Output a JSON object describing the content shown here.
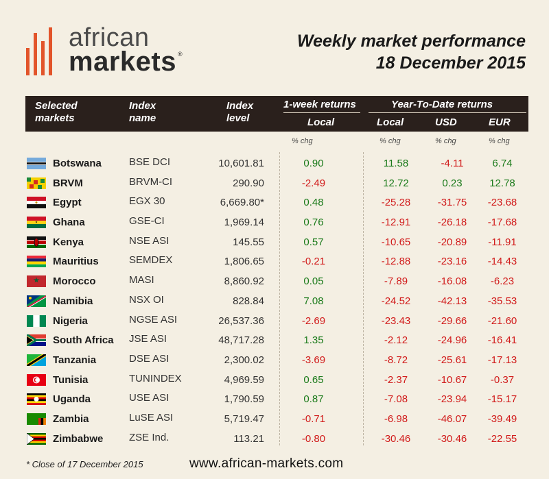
{
  "logo": {
    "line1": "african",
    "line2": "markets",
    "reg": "®"
  },
  "title": {
    "line1": "Weekly market performance",
    "line2": "18 December 2015"
  },
  "header": {
    "col_market": "Selected markets",
    "col_market_1": "Selected",
    "col_market_2": "markets",
    "col_index_1": "Index",
    "col_index_2": "name",
    "col_level_1": "Index",
    "col_level_2": "level",
    "week_group": "1-week returns",
    "ytd_group": "Year-To-Date returns",
    "week_local": "Local",
    "ytd_local": "Local",
    "ytd_usd": "USD",
    "ytd_eur": "EUR"
  },
  "subheader": {
    "wk": "% chg",
    "ytdl": "% chg",
    "ytdu": "% chg",
    "ytde": "% chg"
  },
  "rows": [
    {
      "country": "Botswana",
      "index": "BSE DCI",
      "level": "10,601.81",
      "wk": "0.90",
      "ytdl": "11.58",
      "ytdu": "-4.11",
      "ytde": "6.74"
    },
    {
      "country": "BRVM",
      "index": "BRVM-CI",
      "level": "290.90",
      "wk": "-2.49",
      "ytdl": "12.72",
      "ytdu": "0.23",
      "ytde": "12.78"
    },
    {
      "country": "Egypt",
      "index": "EGX 30",
      "level": "6,669.80*",
      "wk": "0.48",
      "ytdl": "-25.28",
      "ytdu": "-31.75",
      "ytde": "-23.68"
    },
    {
      "country": "Ghana",
      "index": "GSE-CI",
      "level": "1,969.14",
      "wk": "0.76",
      "ytdl": "-12.91",
      "ytdu": "-26.18",
      "ytde": "-17.68"
    },
    {
      "country": "Kenya",
      "index": "NSE ASI",
      "level": "145.55",
      "wk": "0.57",
      "ytdl": "-10.65",
      "ytdu": "-20.89",
      "ytde": "-11.91"
    },
    {
      "country": "Mauritius",
      "index": "SEMDEX",
      "level": "1,806.65",
      "wk": "-0.21",
      "ytdl": "-12.88",
      "ytdu": "-23.16",
      "ytde": "-14.43"
    },
    {
      "country": "Morocco",
      "index": "MASI",
      "level": "8,860.92",
      "wk": "0.05",
      "ytdl": "-7.89",
      "ytdu": "-16.08",
      "ytde": "-6.23"
    },
    {
      "country": "Namibia",
      "index": "NSX OI",
      "level": "828.84",
      "wk": "7.08",
      "ytdl": "-24.52",
      "ytdu": "-42.13",
      "ytde": "-35.53"
    },
    {
      "country": "Nigeria",
      "index": "NGSE ASI",
      "level": "26,537.36",
      "wk": "-2.69",
      "ytdl": "-23.43",
      "ytdu": "-29.66",
      "ytde": "-21.60"
    },
    {
      "country": "South Africa",
      "index": "JSE ASI",
      "level": "48,717.28",
      "wk": "1.35",
      "ytdl": "-2.12",
      "ytdu": "-24.96",
      "ytde": "-16.41"
    },
    {
      "country": "Tanzania",
      "index": "DSE ASI",
      "level": "2,300.02",
      "wk": "-3.69",
      "ytdl": "-8.72",
      "ytdu": "-25.61",
      "ytde": "-17.13"
    },
    {
      "country": "Tunisia",
      "index": "TUNINDEX",
      "level": "4,969.59",
      "wk": "0.65",
      "ytdl": "-2.37",
      "ytdu": "-10.67",
      "ytde": "-0.37"
    },
    {
      "country": "Uganda",
      "index": "USE ASI",
      "level": "1,790.59",
      "wk": "0.87",
      "ytdl": "-7.08",
      "ytdu": "-23.94",
      "ytde": "-15.17"
    },
    {
      "country": "Zambia",
      "index": "LuSE ASI",
      "level": "5,719.47",
      "wk": "-0.71",
      "ytdl": "-6.98",
      "ytdu": "-46.07",
      "ytde": "-39.49"
    },
    {
      "country": "Zimbabwe",
      "index": "ZSE Ind.",
      "level": "113.21",
      "wk": "-0.80",
      "ytdl": "-30.46",
      "ytdu": "-30.46",
      "ytde": "-22.55"
    }
  ],
  "footnote": "* Close of 17 December 2015",
  "website": "www.african-markets.com",
  "colors": {
    "accent": "#e2542a",
    "header_bg": "#2a201c",
    "page_bg": "#f4efe3",
    "positive": "#1a7a1a",
    "negative": "#d11a1a"
  }
}
